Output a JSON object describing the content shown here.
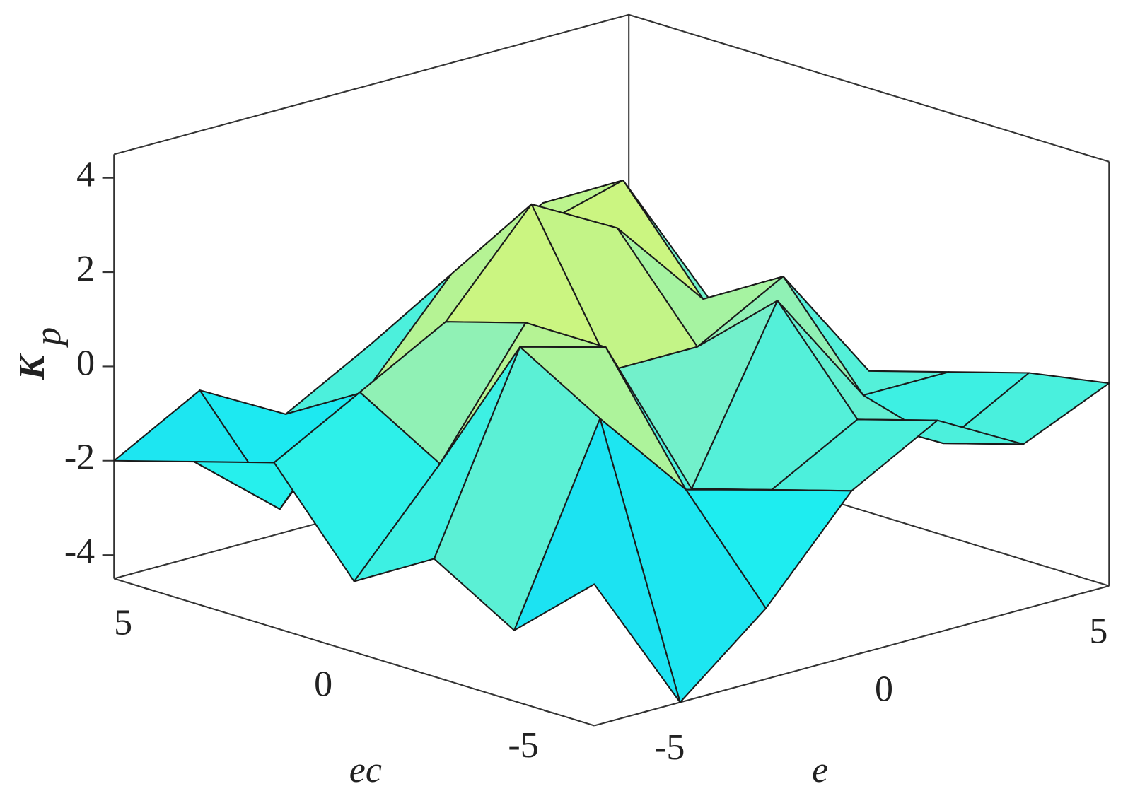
{
  "chart_data": {
    "type": "surface",
    "xlabel": "e",
    "ylabel": "ec",
    "zlabel": "K",
    "zlabel_subscript": "p",
    "x": [
      -6,
      -4,
      -2,
      0,
      2,
      4,
      6
    ],
    "y": [
      -6,
      -4,
      -2,
      0,
      2,
      4,
      6
    ],
    "z": [
      [
        -1.5,
        -4.5,
        -3,
        -1,
        0,
        -1,
        -0.2
      ],
      [
        -3,
        1,
        -1,
        -1.5,
        -0.5,
        -1.5,
        -0.5
      ],
      [
        -2,
        2,
        1.5,
        -2,
        1.5,
        -1,
        -1
      ],
      [
        -3,
        -1,
        1.5,
        0,
        0,
        1,
        -1.5
      ],
      [
        -1,
        0,
        1,
        3,
        2,
        0,
        -1.5
      ],
      [
        -1.5,
        -3,
        -1,
        1,
        1.5,
        2,
        -1
      ],
      [
        -2,
        -1,
        -2,
        -1,
        0,
        1,
        -1
      ]
    ],
    "xlim": [
      -6,
      6
    ],
    "ylim": [
      -6,
      6
    ],
    "zlim": [
      -4.5,
      4.5
    ],
    "xticks": [
      -5,
      0,
      5
    ],
    "yticks": [
      -5,
      0,
      5
    ],
    "zticks": [
      -4,
      -2,
      0,
      2,
      4
    ],
    "colormap": [
      "#0a8cf5",
      "#19c8f5",
      "#1ef0f0",
      "#7af0c8",
      "#d2f57a",
      "#f0f01e"
    ],
    "edge_color": "#1a1a1a"
  }
}
